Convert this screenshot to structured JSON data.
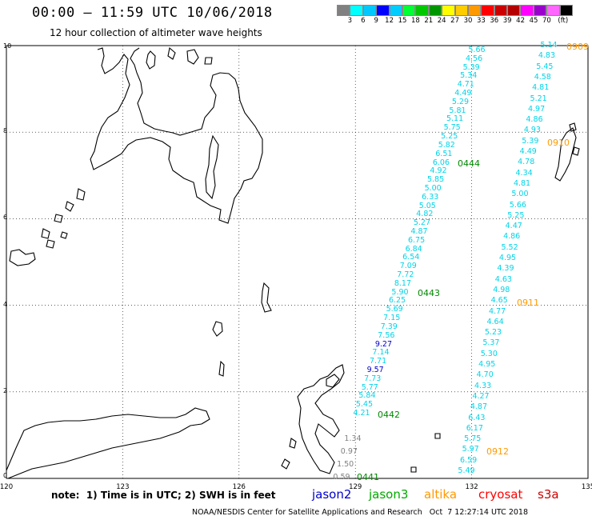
{
  "header": {
    "title": "00:00 – 11:59 UTC 10/06/2018",
    "subtitle": "12 hour collection of altimeter wave heights"
  },
  "colorbar": {
    "colors": [
      "#808080",
      "#00ffff",
      "#00c8ff",
      "#0000ff",
      "#00ccff",
      "#00ff33",
      "#00c800",
      "#009600",
      "#ffff00",
      "#ffcc00",
      "#ff9900",
      "#ff0000",
      "#cc0000",
      "#b40000",
      "#ff00ff",
      "#9900cc",
      "#ff66ff",
      "#000000"
    ],
    "labels": [
      "3",
      "6",
      "9",
      "12",
      "15",
      "18",
      "21",
      "24",
      "27",
      "30",
      "33",
      "36",
      "39",
      "42",
      "45",
      "70",
      "(ft)"
    ]
  },
  "axes": {
    "y_ticks": [
      "10",
      "8",
      "6",
      "4",
      "2",
      "0"
    ],
    "x_ticks": [
      "120",
      "123",
      "126",
      "129",
      "132",
      "135"
    ]
  },
  "tracks": {
    "track_a_values": [
      "5.66",
      "4.56",
      "5.39",
      "5.34",
      "4.71",
      "4.49",
      "5.29",
      "5.81",
      "5.11",
      "5.75",
      "5.25",
      "5.82",
      "6.51",
      "6.06",
      "4.92",
      "5.85",
      "5.00",
      "6.33",
      "5.05",
      "4.82",
      "5.27",
      "4.87",
      "6.75",
      "6.84",
      "6.54",
      "7.09",
      "7.72",
      "8.17",
      "5.90",
      "6.25",
      "5.69",
      "7.15",
      "7.39",
      "7.56",
      "9.27",
      "7.14",
      "7.71",
      "9.57",
      "7.73",
      "5.77",
      "5.84",
      "5.45",
      "4.21"
    ],
    "track_b_values": [
      "5.14",
      "4.83",
      "5.45",
      "4.58",
      "4.81",
      "5.21",
      "4.97",
      "4.86",
      "4.93",
      "5.39",
      "4.49",
      "4.78",
      "4.34",
      "4.81",
      "5.00",
      "5.66",
      "5.25",
      "4.47",
      "4.86",
      "5.52",
      "4.95",
      "4.39",
      "4.63",
      "4.98",
      "4.65",
      "4.77",
      "4.64",
      "5.23",
      "5.37",
      "5.30",
      "4.95",
      "4.70",
      "4.33",
      "4.27",
      "4.87",
      "6.43",
      "6.17",
      "5.75",
      "5.97",
      "6.59",
      "5.49"
    ],
    "track_c_values": [
      "1.34",
      "0.97",
      "1.50",
      "0.59"
    ]
  },
  "time_labels": [
    {
      "text": "0909",
      "color": "#ff9900"
    },
    {
      "text": "0910",
      "color": "#ff9900"
    },
    {
      "text": "0444",
      "color": "#008800"
    },
    {
      "text": "0443",
      "color": "#008800"
    },
    {
      "text": "0911",
      "color": "#ff9900"
    },
    {
      "text": "0442",
      "color": "#008800"
    },
    {
      "text": "0912",
      "color": "#ff9900"
    },
    {
      "text": "0441",
      "color": "#008800"
    }
  ],
  "colors": {
    "cyan_low": "#00d4e8",
    "blue_high": "#0000cc",
    "gray_low": "#808080",
    "jason3_green": "#008800",
    "altika_orange": "#ff9900"
  },
  "footer": {
    "note": "note:  1) Time is in UTC; 2) SWH is in feet",
    "satellites": [
      {
        "name": "jason2",
        "color": "#0000cc"
      },
      {
        "name": "jason3",
        "color": "#00aa00"
      },
      {
        "name": "altika",
        "color": "#ff9900"
      },
      {
        "name": "cryosat",
        "color": "#ff0000"
      },
      {
        "name": "s3a",
        "color": "#cc0000"
      }
    ],
    "credit": "NOAA/NESDIS Center for Satellite Applications and Research   Oct  7 12:27:14 UTC 2018"
  }
}
